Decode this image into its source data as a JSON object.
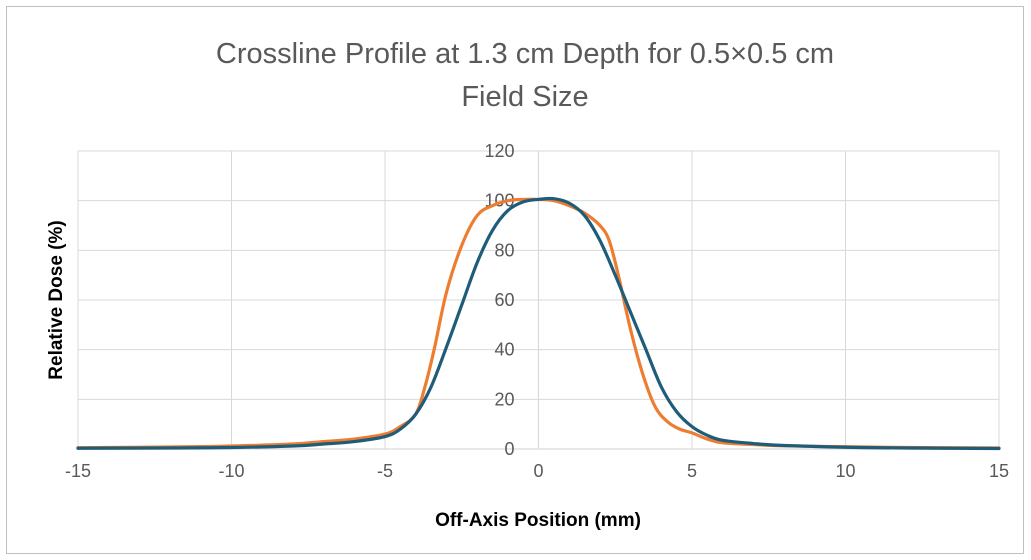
{
  "chart_data": {
    "type": "line",
    "title_line1": "Crossline Profile at 1.3 cm Depth for 0.5×0.5 cm",
    "title_line2": "Field Size",
    "xlabel": "Off-Axis Position (mm)",
    "ylabel": "Relative Dose (%)",
    "xlim": [
      -15,
      15
    ],
    "ylim": [
      0,
      120
    ],
    "xticks": [
      -15,
      -10,
      -5,
      0,
      5,
      10,
      15
    ],
    "yticks": [
      0,
      20,
      40,
      60,
      80,
      100,
      120
    ],
    "grid": true,
    "legend": "none",
    "series": [
      {
        "color": "#ED7D31",
        "x": [
          -15,
          -12,
          -10,
          -8,
          -7,
          -6,
          -5,
          -4.5,
          -4,
          -3.7,
          -3.4,
          -3,
          -2.5,
          -2,
          -1.5,
          -1,
          -0.5,
          0,
          0.5,
          1,
          1.5,
          2,
          2.3,
          2.6,
          3,
          3.4,
          3.8,
          4.2,
          4.6,
          5,
          5.5,
          6,
          7,
          8,
          10,
          12,
          15
        ],
        "y": [
          0.5,
          0.8,
          1.2,
          2,
          3,
          4,
          6,
          9,
          14,
          25,
          40,
          63,
          82,
          94,
          98,
          100,
          100.5,
          100.5,
          100,
          98,
          95,
          90,
          84,
          70,
          48,
          30,
          17,
          11,
          8,
          6.5,
          4,
          2.5,
          1.8,
          1.3,
          0.9,
          0.6,
          0.4
        ]
      },
      {
        "color": "#1F5C7A",
        "x": [
          -15,
          -12,
          -10,
          -8,
          -7,
          -6,
          -5,
          -4.5,
          -4,
          -3.5,
          -3,
          -2.5,
          -2,
          -1.5,
          -1,
          -0.5,
          0,
          0.5,
          1,
          1.5,
          2,
          2.5,
          3,
          3.5,
          4,
          4.5,
          5,
          5.5,
          6,
          7,
          8,
          10,
          12,
          15
        ],
        "y": [
          0.3,
          0.4,
          0.6,
          1.2,
          2,
          3,
          5,
          8,
          14,
          25,
          41,
          58,
          75,
          88,
          96,
          99.5,
          100.5,
          100.8,
          99,
          94,
          84,
          70,
          55,
          40,
          25,
          15,
          9,
          5.5,
          3.5,
          2.2,
          1.4,
          0.7,
          0.4,
          0.2
        ]
      }
    ]
  }
}
